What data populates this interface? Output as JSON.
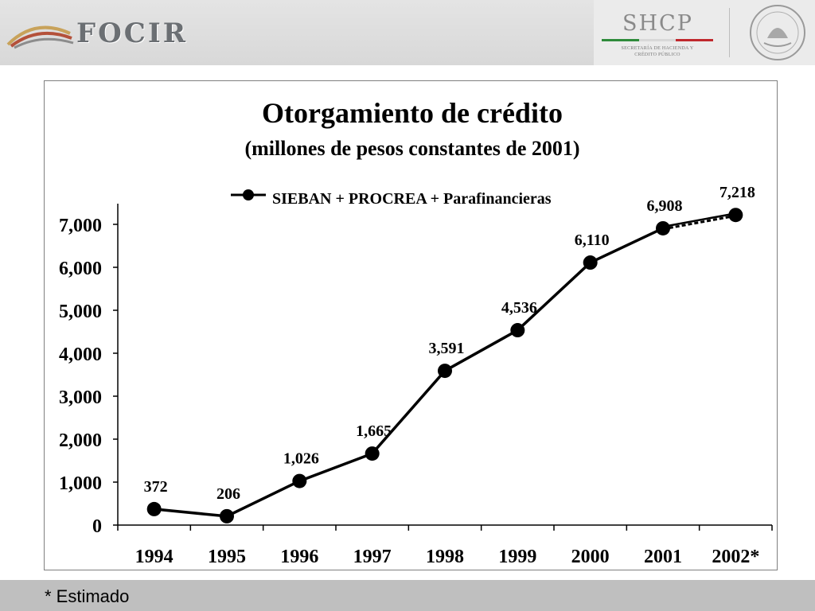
{
  "header": {
    "left_logo_text": "FOCIR",
    "right_logo_text": "SHCP",
    "right_logo_subtitle": "SECRETARÍA DE HACIENDA Y CRÉDITO PÚBLICO"
  },
  "chart_data": {
    "type": "line",
    "title": "Otorgamiento de crédito",
    "subtitle": "(millones de pesos constantes de 2001)",
    "xlabel": "",
    "ylabel": "",
    "categories": [
      "1994",
      "1995",
      "1996",
      "1997",
      "1998",
      "1999",
      "2000",
      "2001",
      "2002*"
    ],
    "series": [
      {
        "name": "SIEBAN + PROCREA + Parafinancieras",
        "values": [
          372,
          206,
          1026,
          1665,
          3591,
          4536,
          6110,
          6908,
          7218
        ],
        "labels": [
          "372",
          "206",
          "1,026",
          "1,665",
          "3,591",
          "4,536",
          "6,110",
          "6,908",
          "7,218"
        ],
        "color": "#000000",
        "estimated_segment": [
          "2001",
          "2002*"
        ]
      }
    ],
    "ylim": [
      0,
      7500
    ],
    "yticks": [
      0,
      1000,
      2000,
      3000,
      4000,
      5000,
      6000,
      7000
    ],
    "ytick_labels": [
      "0",
      "1,000",
      "2,000",
      "3,000",
      "4,000",
      "5,000",
      "6,000",
      "7,000"
    ],
    "grid": false,
    "legend_position": "top"
  },
  "footnote": "* Estimado"
}
